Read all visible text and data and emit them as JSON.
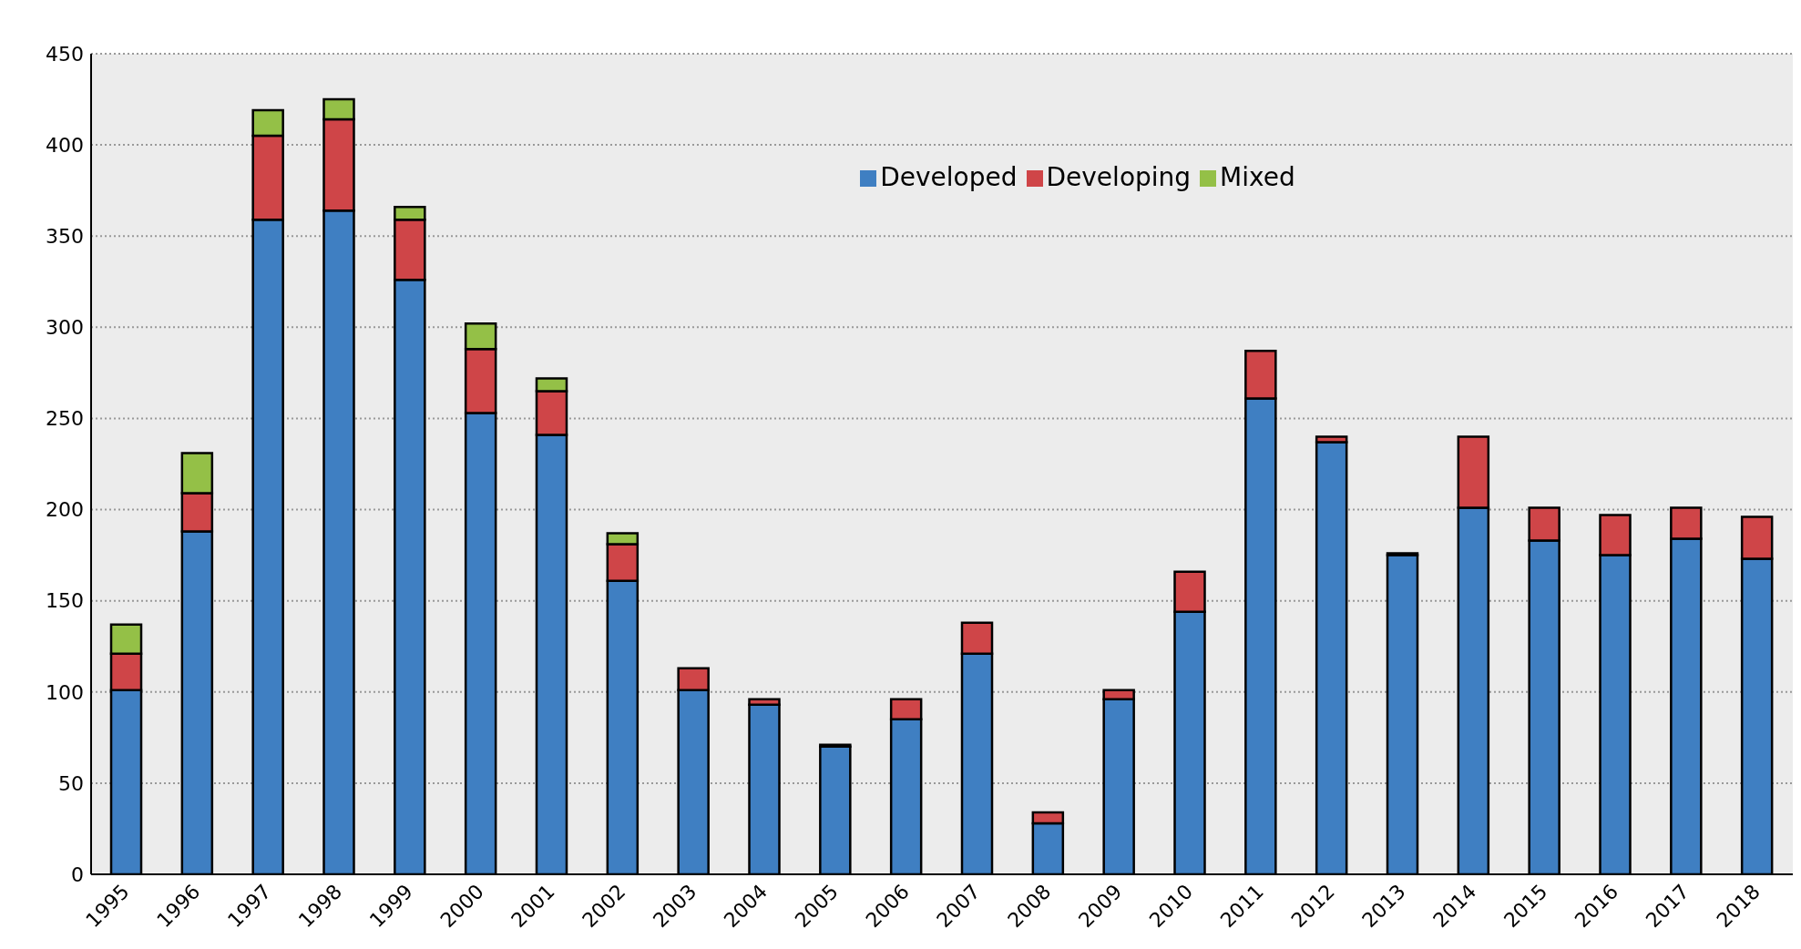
{
  "chart_data": {
    "type": "bar",
    "stacked": true,
    "categories": [
      "1995",
      "1996",
      "1997",
      "1998",
      "1999",
      "2000",
      "2001",
      "2002",
      "2003",
      "2004",
      "2005",
      "2006",
      "2007",
      "2008",
      "2009",
      "2010",
      "2011",
      "2012",
      "2013",
      "2014",
      "2015",
      "2016",
      "2017",
      "2018"
    ],
    "series": [
      {
        "name": "Developed",
        "color": "#3f7fc2",
        "values": [
          101,
          188,
          359,
          364,
          326,
          253,
          241,
          161,
          101,
          93,
          70,
          85,
          121,
          28,
          96,
          144,
          261,
          237,
          175,
          201,
          183,
          175,
          184,
          173
        ]
      },
      {
        "name": "Developing",
        "color": "#cf4548",
        "values": [
          20,
          21,
          46,
          50,
          33,
          35,
          24,
          20,
          12,
          3,
          1,
          11,
          17,
          6,
          5,
          22,
          26,
          3,
          1,
          39,
          18,
          22,
          17,
          23
        ]
      },
      {
        "name": "Mixed",
        "color": "#94c047",
        "values": [
          16,
          22,
          14,
          11,
          7,
          14,
          7,
          6,
          null,
          null,
          null,
          null,
          null,
          null,
          null,
          null,
          null,
          null,
          null,
          null,
          null,
          null,
          null,
          null
        ]
      }
    ],
    "ylim": [
      0,
      450
    ],
    "yticks": [
      0,
      50,
      100,
      150,
      200,
      250,
      300,
      350,
      400,
      450
    ],
    "grid": "y",
    "legend": "top"
  }
}
